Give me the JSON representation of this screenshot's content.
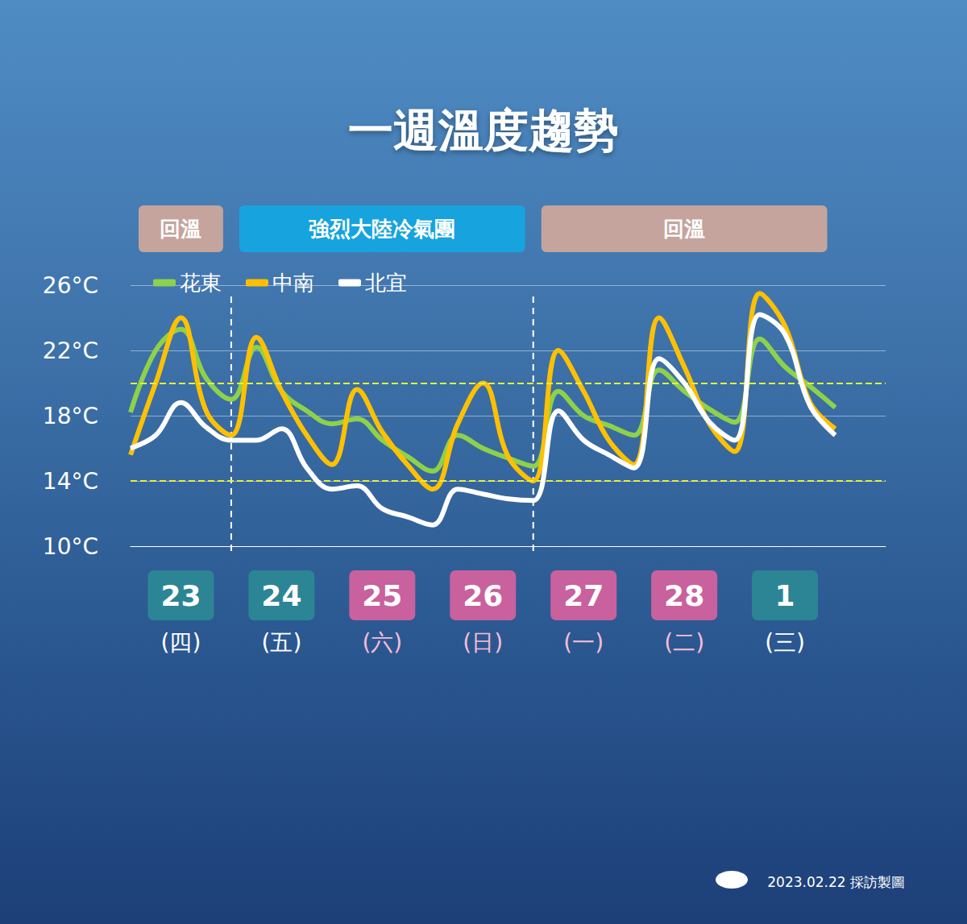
{
  "chart_data": {
    "type": "line",
    "title": "一週溫度趨勢",
    "categories": [
      null,
      null,
      "23\n(四)",
      null,
      null,
      null,
      "24\n(五)",
      null,
      null,
      null,
      "25\n(六)",
      null,
      null,
      null,
      "26\n(日)",
      null,
      null,
      null,
      "27\n(一)",
      null,
      null,
      null,
      "28\n(二)",
      null,
      null,
      null,
      "1\n(三)",
      null,
      null,
      null,
      null
    ],
    "series": [
      {
        "name": "花東",
        "color": "#8ed14a",
        "values": [
          18.2,
          22.0,
          23.3,
          20.3,
          19.0,
          22.2,
          19.5,
          18.3,
          17.5,
          17.8,
          16.5,
          15.5,
          14.6,
          16.8,
          16.0,
          15.4,
          14.9,
          19.5,
          18.0,
          17.4,
          16.8,
          20.8,
          19.5,
          18.4,
          17.6,
          22.7,
          21.0,
          19.8,
          18.5,
          null,
          null
        ]
      },
      {
        "name": "中南",
        "color": "#ffc000",
        "values": [
          15.6,
          20.0,
          24.0,
          18.3,
          16.8,
          22.8,
          19.5,
          16.8,
          15.0,
          19.6,
          17.0,
          15.0,
          13.5,
          17.5,
          20.0,
          15.5,
          14.0,
          22.0,
          19.5,
          16.5,
          15.0,
          24.0,
          21.0,
          17.5,
          15.8,
          25.5,
          23.5,
          18.8,
          17.2,
          null,
          null
        ]
      },
      {
        "name": "北宜",
        "color": "#ffffff",
        "values": [
          16.0,
          16.8,
          18.8,
          17.3,
          16.5,
          16.5,
          17.2,
          14.8,
          13.5,
          13.7,
          12.3,
          11.8,
          11.3,
          13.5,
          13.2,
          12.9,
          12.8,
          18.3,
          16.5,
          15.6,
          14.8,
          21.5,
          20.0,
          17.6,
          16.5,
          24.2,
          23.0,
          18.6,
          16.8,
          null,
          null
        ]
      }
    ],
    "ylim": [
      10,
      26
    ],
    "yticks": [
      {
        "value": 10,
        "label": "10°C"
      },
      {
        "value": 14,
        "label": "14°C"
      },
      {
        "value": 18,
        "label": "18°C"
      },
      {
        "value": 22,
        "label": "22°C"
      },
      {
        "value": 26,
        "label": "26°C"
      }
    ],
    "grid": true,
    "legend": "top-left",
    "reference_lines": [
      14,
      20
    ],
    "periods": [
      {
        "label": "回溫",
        "from": "23",
        "to": "23",
        "color": "#c4a49c"
      },
      {
        "label": "強烈大陸冷氣團",
        "from": "24",
        "to": "26",
        "color": "#17a3dd"
      },
      {
        "label": "回溫",
        "from": "27",
        "to": "1",
        "color": "#c4a49c"
      }
    ],
    "holidays": [
      "25",
      "26",
      "27",
      "28"
    ],
    "footer": "2023.02.22 採訪製圖"
  }
}
